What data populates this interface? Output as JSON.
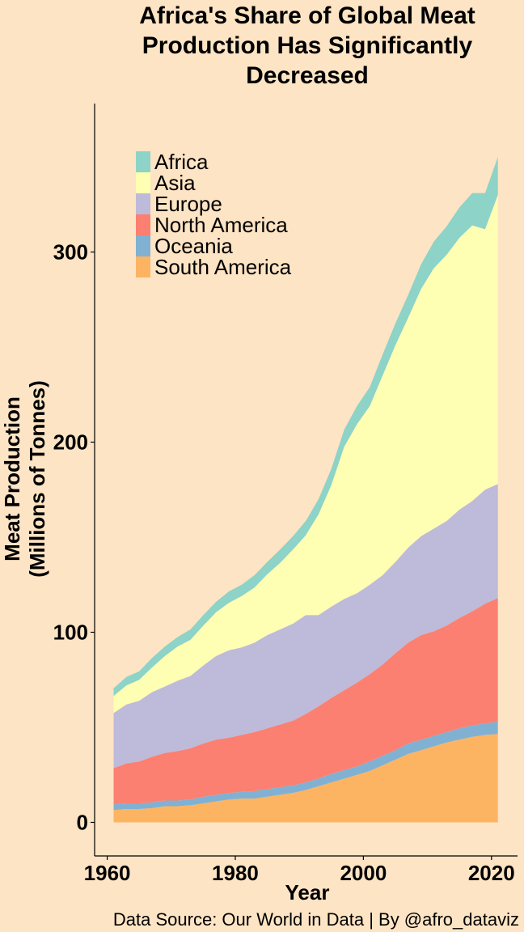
{
  "chart_data": {
    "type": "area",
    "stacked": true,
    "title": [
      "Africa's Share of Global Meat",
      "Production Has Significantly",
      "Decreased"
    ],
    "xlabel": "Year",
    "ylabel": [
      "Meat Production",
      "(Millions of Tonnes)"
    ],
    "caption": "Data Source: Our World in Data | By @afro_dataviz",
    "xlim": [
      1961,
      2021
    ],
    "ylim": [
      0,
      350
    ],
    "x_ticks": [
      "1960",
      "1980",
      "2000",
      "2020"
    ],
    "y_ticks": [
      "0",
      "100",
      "200",
      "300"
    ],
    "legend_position": "top-left",
    "grid": false,
    "x": [
      1961,
      1963,
      1965,
      1967,
      1969,
      1971,
      1973,
      1975,
      1977,
      1979,
      1981,
      1983,
      1985,
      1987,
      1989,
      1991,
      1993,
      1995,
      1997,
      1999,
      2001,
      2003,
      2005,
      2007,
      2009,
      2011,
      2013,
      2015,
      2017,
      2019,
      2021
    ],
    "series": [
      {
        "name": "South America",
        "color": "#FDB462",
        "values": [
          6.5,
          7,
          7,
          7.5,
          8.5,
          8.5,
          9,
          10,
          11,
          12,
          12.5,
          12.5,
          13.5,
          14.5,
          15.5,
          17,
          19,
          21,
          23,
          25,
          27,
          30,
          33,
          36,
          38,
          40,
          42,
          43.5,
          45,
          46,
          46.5
        ]
      },
      {
        "name": "Oceania",
        "color": "#80B1D3",
        "values": [
          3,
          3,
          3,
          3,
          3,
          3,
          3,
          3.5,
          3.5,
          3.5,
          3.5,
          4,
          4,
          4,
          4,
          4,
          4,
          4.5,
          4.5,
          4.5,
          5,
          5,
          5,
          5.5,
          5.5,
          5.5,
          5.5,
          6,
          6,
          6,
          6.5
        ]
      },
      {
        "name": "North America",
        "color": "#FB8072",
        "values": [
          19,
          21,
          22,
          24,
          25,
          26,
          27,
          28,
          29,
          29,
          30,
          31,
          32,
          33,
          34,
          36,
          38,
          40,
          42,
          44,
          46,
          48,
          51,
          53,
          55,
          55,
          56,
          58,
          60,
          63,
          65
        ]
      },
      {
        "name": "Europe",
        "color": "#BEBADA",
        "values": [
          29,
          31,
          32,
          34,
          35,
          37,
          38,
          41,
          44,
          46,
          46,
          47,
          49,
          50,
          51,
          52,
          48,
          48,
          48,
          47,
          47,
          47,
          48,
          50,
          52,
          54,
          55,
          57,
          58,
          60,
          60
        ]
      },
      {
        "name": "Asia",
        "color": "#FFFFB3",
        "values": [
          9,
          10,
          11,
          13,
          16,
          18,
          19,
          21,
          23,
          25,
          27,
          29,
          32,
          35,
          39,
          42,
          53,
          64,
          80,
          89,
          94,
          105,
          114,
          121,
          130,
          137,
          140,
          143,
          145,
          137,
          152
        ]
      },
      {
        "name": "Africa",
        "color": "#8DD3C7",
        "values": [
          4,
          4.5,
          4.5,
          5,
          5,
          5,
          5.5,
          5.5,
          5.5,
          6,
          6,
          6.5,
          6.5,
          7,
          7,
          7.5,
          8,
          8.5,
          9,
          9.5,
          10,
          11,
          11.5,
          12,
          13,
          14,
          15,
          16,
          17,
          19,
          20
        ]
      }
    ],
    "legend_order": [
      "Africa",
      "Asia",
      "Europe",
      "North America",
      "Oceania",
      "South America"
    ]
  }
}
